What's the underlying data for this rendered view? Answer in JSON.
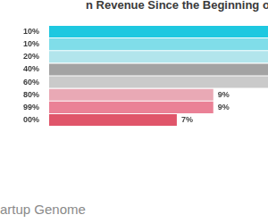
{
  "chart_data": {
    "type": "bar",
    "orientation": "horizontal",
    "title": "n Revenue Since the Beginning of th",
    "source": "artup Genome",
    "categories": [
      "10%",
      "10%",
      "20%",
      "40%",
      "60%",
      "80%",
      "99%",
      "00%"
    ],
    "values": [
      12,
      12,
      12,
      12,
      12,
      9,
      9,
      7
    ],
    "value_labels": [
      null,
      null,
      null,
      null,
      null,
      "9%",
      "9%",
      "7%"
    ],
    "data_labels": true,
    "colors": [
      "#1ec8e0",
      "#80dde9",
      "#b2e5ec",
      "#a3a3a3",
      "#cacaca",
      "#e9a9b5",
      "#ea8196",
      "#e0556a"
    ],
    "xlim": [
      0,
      12
    ],
    "grid": false,
    "tick_labels": "y"
  }
}
